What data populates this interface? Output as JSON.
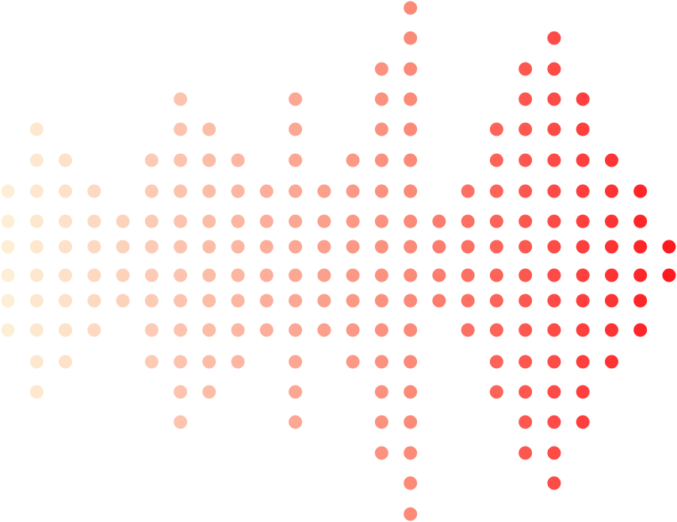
{
  "graphic": {
    "kind": "dot-matrix sound waveform",
    "color_start": "#fdefd6",
    "color_mid": "#fb8c7a",
    "color_end": "#ff1a1f",
    "column_half_heights": [
      3,
      5,
      4,
      3,
      2,
      4,
      6,
      5,
      4,
      3,
      6,
      3,
      4,
      7,
      9,
      2,
      3,
      5,
      7,
      8,
      6,
      4,
      3,
      1
    ]
  }
}
